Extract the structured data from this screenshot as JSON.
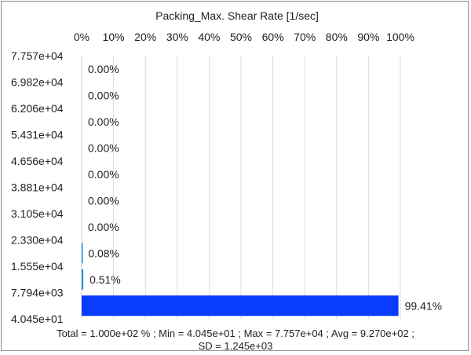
{
  "chart_data": {
    "type": "bar",
    "orientation": "horizontal",
    "title": "Packing_Max. Shear Rate [1/sec]",
    "x_ticks": [
      "0%",
      "10%",
      "20%",
      "30%",
      "40%",
      "50%",
      "60%",
      "70%",
      "80%",
      "90%",
      "100%"
    ],
    "xlim": [
      0,
      100
    ],
    "y_ticks": [
      "7.757e+04",
      "6.982e+04",
      "6.206e+04",
      "5.431e+04",
      "4.656e+04",
      "3.881e+04",
      "3.105e+04",
      "2.330e+04",
      "1.555e+04",
      "7.794e+03",
      "4.045e+01"
    ],
    "bins": [
      {
        "from": "6.982e+04",
        "to": "7.757e+04",
        "value": 0.0,
        "label": "0.00%"
      },
      {
        "from": "6.206e+04",
        "to": "6.982e+04",
        "value": 0.0,
        "label": "0.00%"
      },
      {
        "from": "5.431e+04",
        "to": "6.206e+04",
        "value": 0.0,
        "label": "0.00%"
      },
      {
        "from": "4.656e+04",
        "to": "5.431e+04",
        "value": 0.0,
        "label": "0.00%"
      },
      {
        "from": "3.881e+04",
        "to": "4.656e+04",
        "value": 0.0,
        "label": "0.00%"
      },
      {
        "from": "3.105e+04",
        "to": "3.881e+04",
        "value": 0.0,
        "label": "0.00%"
      },
      {
        "from": "2.330e+04",
        "to": "3.105e+04",
        "value": 0.0,
        "label": "0.00%"
      },
      {
        "from": "1.555e+04",
        "to": "2.330e+04",
        "value": 0.08,
        "label": "0.08%"
      },
      {
        "from": "7.794e+03",
        "to": "1.555e+04",
        "value": 0.51,
        "label": "0.51%"
      },
      {
        "from": "4.045e+01",
        "to": "7.794e+03",
        "value": 99.41,
        "label": "99.41%"
      }
    ],
    "bar_colors": {
      "small": "#1a8fdc",
      "large": "#0a3cff"
    },
    "grid": true,
    "footer_line1": "Total = 1.000e+02 % ; Min = 4.045e+01 ;   Max = 7.757e+04 ;   Avg = 9.270e+02 ;",
    "footer_line2": "SD = 1.245e+03"
  }
}
